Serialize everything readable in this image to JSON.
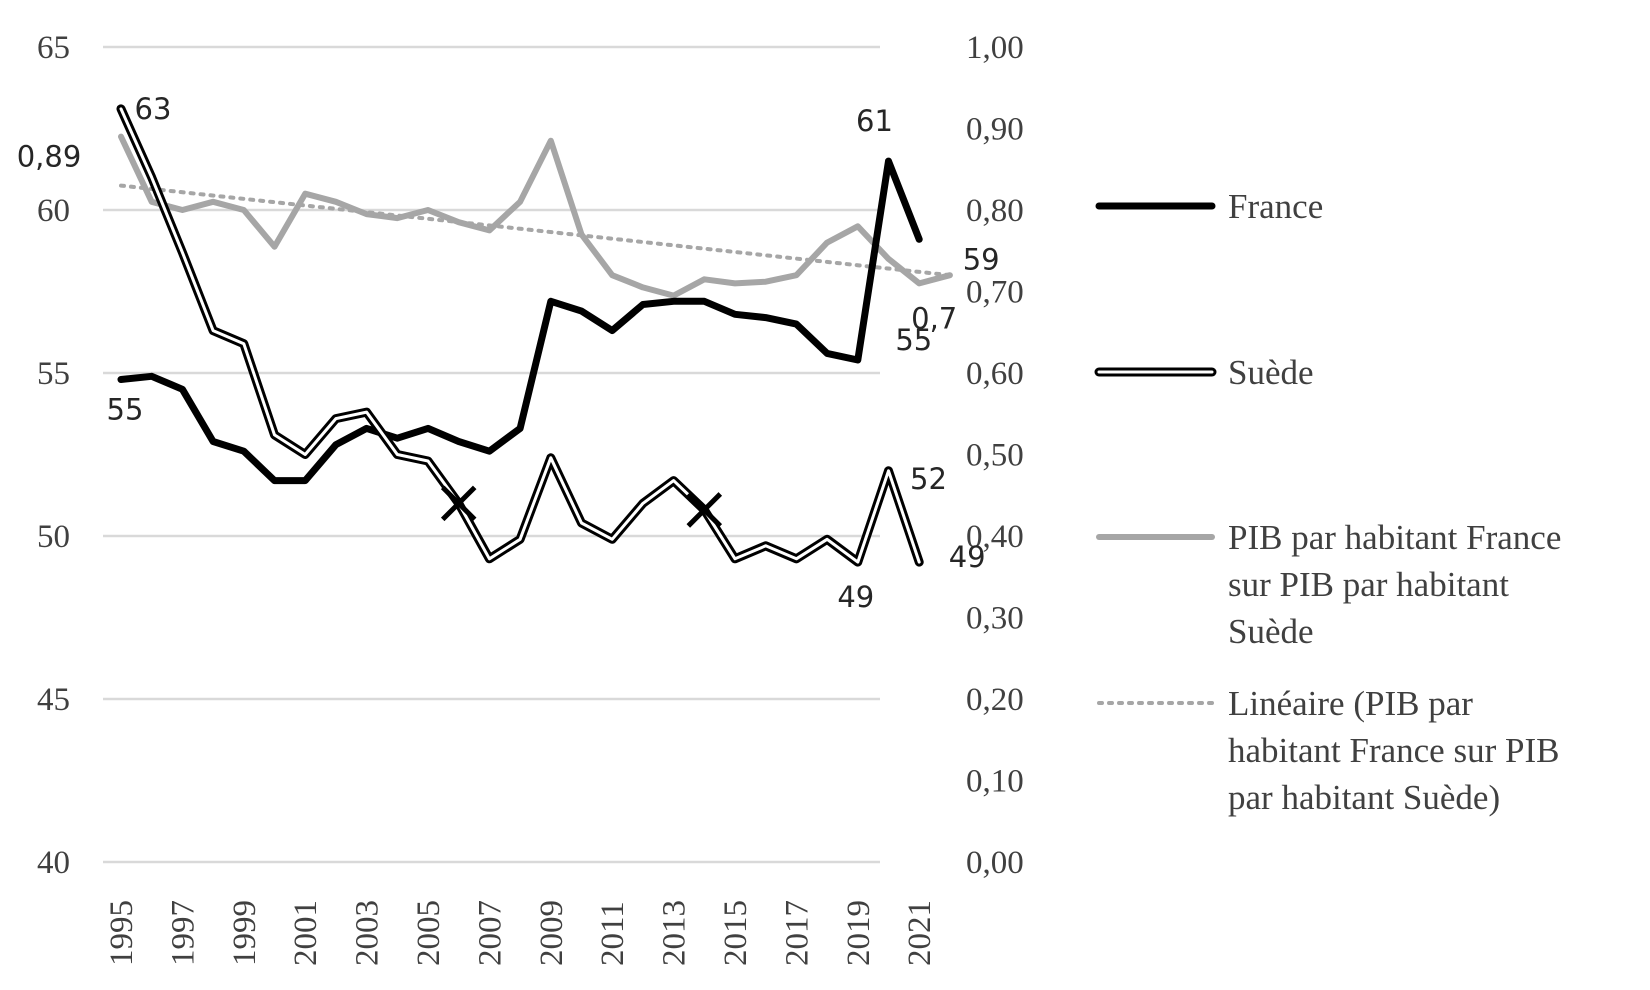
{
  "chart_data": {
    "type": "line",
    "x": [
      1995,
      1996,
      1997,
      1998,
      1999,
      2000,
      2001,
      2002,
      2003,
      2004,
      2005,
      2006,
      2007,
      2008,
      2009,
      2010,
      2011,
      2012,
      2013,
      2014,
      2015,
      2016,
      2017,
      2018,
      2019,
      2020,
      2021,
      2022
    ],
    "x_tick_labels": [
      "1995",
      "1997",
      "1999",
      "2001",
      "2003",
      "2005",
      "2007",
      "2009",
      "2011",
      "2013",
      "2015",
      "2017",
      "2019",
      "2021"
    ],
    "y_left": {
      "min": 40,
      "max": 65,
      "ticks": [
        "40",
        "45",
        "50",
        "55",
        "60",
        "65"
      ]
    },
    "y_right": {
      "min": 0,
      "max": 1,
      "ticks": [
        "0,00",
        "0,10",
        "0,20",
        "0,30",
        "0,40",
        "0,50",
        "0,60",
        "0,70",
        "0,80",
        "0,90",
        "1,00"
      ]
    },
    "grid": true,
    "legend_position": "right",
    "series": [
      {
        "name": "France",
        "axis": "left",
        "color": "#000000",
        "style": "solid-thick",
        "values": [
          54.8,
          54.9,
          54.5,
          52.9,
          52.6,
          51.7,
          51.7,
          52.8,
          53.3,
          53.0,
          53.3,
          52.9,
          52.6,
          53.3,
          57.2,
          56.9,
          56.3,
          57.1,
          57.2,
          57.2,
          56.8,
          56.7,
          56.5,
          55.6,
          55.4,
          61.5,
          59.1,
          null
        ]
      },
      {
        "name": "Suède",
        "axis": "left",
        "color": "#000000",
        "style": "double-outline",
        "values": [
          63.1,
          61.0,
          58.7,
          56.3,
          55.9,
          53.1,
          52.5,
          53.6,
          53.8,
          52.5,
          52.3,
          51.0,
          49.3,
          49.9,
          52.4,
          50.4,
          49.9,
          51.0,
          51.7,
          50.8,
          49.3,
          49.7,
          49.3,
          49.9,
          49.2,
          52.0,
          49.2,
          null
        ]
      },
      {
        "name": "PIB par habitant France sur PIB par habitant Suède",
        "axis": "right",
        "color": "#a6a6a6",
        "style": "solid",
        "values": [
          0.89,
          0.81,
          0.8,
          0.81,
          0.8,
          0.755,
          0.82,
          0.81,
          0.795,
          0.79,
          0.8,
          0.785,
          0.775,
          0.81,
          0.885,
          0.77,
          0.72,
          0.705,
          0.695,
          0.715,
          0.71,
          0.712,
          0.72,
          0.76,
          0.78,
          0.74,
          0.71,
          0.72
        ]
      },
      {
        "name": "Linéaire (PIB par habitant France sur PIB par habitant Suède)",
        "axis": "right",
        "color": "#a6a6a6",
        "style": "dotted",
        "values": [
          0.83,
          null,
          null,
          null,
          null,
          null,
          null,
          null,
          null,
          null,
          null,
          null,
          null,
          null,
          null,
          null,
          null,
          null,
          null,
          null,
          null,
          null,
          null,
          null,
          null,
          null,
          null,
          0.72
        ]
      }
    ],
    "markers": [
      {
        "series": "Suède",
        "x": 2006,
        "y": 51.0
      },
      {
        "series": "Suède",
        "x": 2014,
        "y": 50.8
      }
    ],
    "data_labels": [
      {
        "text": "63",
        "series": "Suède",
        "x": 1995
      },
      {
        "text": "0,89",
        "series": "PIB par habitant France sur PIB par habitant Suède",
        "x": 1995
      },
      {
        "text": "55",
        "series": "France",
        "x": 1995
      },
      {
        "text": "61",
        "series": "France",
        "x": 2020
      },
      {
        "text": "59",
        "series": "France",
        "x": 2021
      },
      {
        "text": "0,7",
        "series": "PIB par habitant France sur PIB par habitant Suède",
        "x": 2021
      },
      {
        "text": "55",
        "series": "France",
        "x": 2019
      },
      {
        "text": "52",
        "series": "Suède",
        "x": 2020
      },
      {
        "text": "49",
        "series": "Suède",
        "x": 2019
      },
      {
        "text": "49",
        "series": "Suède",
        "x": 2021
      }
    ],
    "legend": [
      {
        "lines": [
          "France"
        ],
        "style": "solid-thick"
      },
      {
        "lines": [
          "Suède"
        ],
        "style": "double-outline"
      },
      {
        "lines": [
          "PIB par habitant France",
          "sur PIB par habitant",
          "Suède"
        ],
        "style": "solid"
      },
      {
        "lines": [
          "Linéaire (PIB par",
          "habitant France sur PIB",
          "par habitant Suède)"
        ],
        "style": "dotted"
      }
    ]
  }
}
